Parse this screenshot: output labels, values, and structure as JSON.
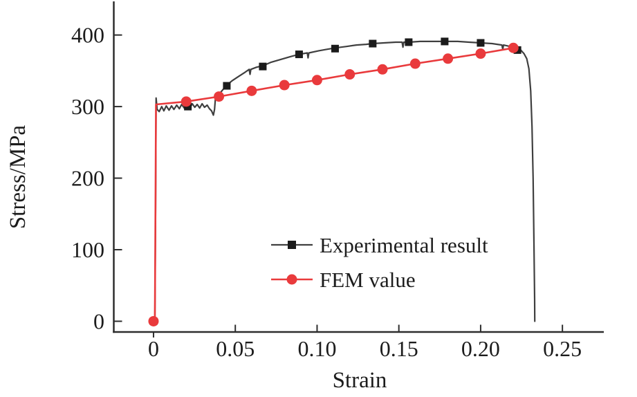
{
  "chart_data": {
    "type": "line",
    "title": "",
    "xlabel": "Strain",
    "ylabel": "Stress/MPa",
    "xlim": [
      -0.0243,
      0.2753
    ],
    "ylim": [
      -15,
      447
    ],
    "grid": false,
    "legend_position": "inside-center-right",
    "x_ticks": {
      "values": [
        0,
        0.05,
        0.1,
        0.15,
        0.2,
        0.25
      ],
      "labels": [
        "0",
        "0.05",
        "0.10",
        "0.15",
        "0.20",
        "0.25"
      ]
    },
    "y_ticks": {
      "values": [
        0,
        100,
        200,
        300,
        400
      ],
      "labels": [
        "0",
        "100",
        "200",
        "300",
        "400"
      ]
    },
    "axis_color": "#2d2d2d",
    "series": [
      {
        "name": "Experimental result",
        "color": "#3f3f3f",
        "marker": "square",
        "marker_color": "#1b1b1b",
        "marker_size": 11,
        "line_width": 2.2,
        "line": [
          [
            0.0,
            0
          ],
          [
            0.0008,
            0
          ],
          [
            0.0013,
            160
          ],
          [
            0.0016,
            312
          ],
          [
            0.0022,
            296
          ],
          [
            0.0035,
            293
          ],
          [
            0.005,
            300
          ],
          [
            0.0063,
            294
          ],
          [
            0.0078,
            301
          ],
          [
            0.0095,
            295
          ],
          [
            0.011,
            301
          ],
          [
            0.0125,
            296
          ],
          [
            0.0142,
            302
          ],
          [
            0.0158,
            297
          ],
          [
            0.0172,
            303
          ],
          [
            0.0188,
            298
          ],
          [
            0.0205,
            303
          ],
          [
            0.0222,
            298
          ],
          [
            0.0237,
            304
          ],
          [
            0.0252,
            299
          ],
          [
            0.0267,
            303
          ],
          [
            0.0282,
            298
          ],
          [
            0.0297,
            304
          ],
          [
            0.0312,
            299
          ],
          [
            0.0328,
            302
          ],
          [
            0.0342,
            297
          ],
          [
            0.0355,
            294
          ],
          [
            0.0366,
            288
          ],
          [
            0.0373,
            296
          ],
          [
            0.0379,
            313
          ],
          [
            0.04,
            317
          ],
          [
            0.0425,
            324
          ],
          [
            0.0448,
            330
          ],
          [
            0.048,
            336
          ],
          [
            0.052,
            342
          ],
          [
            0.056,
            348
          ],
          [
            0.0585,
            352
          ],
          [
            0.059,
            345
          ],
          [
            0.0595,
            352
          ],
          [
            0.063,
            355
          ],
          [
            0.0668,
            357
          ],
          [
            0.072,
            362
          ],
          [
            0.078,
            366
          ],
          [
            0.084,
            370
          ],
          [
            0.089,
            373
          ],
          [
            0.094,
            375
          ],
          [
            0.0945,
            368
          ],
          [
            0.095,
            375
          ],
          [
            0.101,
            378
          ],
          [
            0.106,
            380
          ],
          [
            0.111,
            382
          ],
          [
            0.118,
            384
          ],
          [
            0.124,
            386
          ],
          [
            0.13,
            387
          ],
          [
            0.134,
            388
          ],
          [
            0.141,
            389
          ],
          [
            0.148,
            390
          ],
          [
            0.152,
            390
          ],
          [
            0.1525,
            383
          ],
          [
            0.153,
            390
          ],
          [
            0.156,
            390
          ],
          [
            0.163,
            391
          ],
          [
            0.17,
            391
          ],
          [
            0.178,
            391
          ],
          [
            0.186,
            391
          ],
          [
            0.193,
            390
          ],
          [
            0.2,
            389
          ],
          [
            0.207,
            388
          ],
          [
            0.213,
            386
          ],
          [
            0.2135,
            380
          ],
          [
            0.214,
            386
          ],
          [
            0.218,
            384
          ],
          [
            0.222,
            382
          ],
          [
            0.2245,
            379
          ],
          [
            0.2265,
            374
          ],
          [
            0.2282,
            367
          ],
          [
            0.2295,
            353
          ],
          [
            0.2306,
            322
          ],
          [
            0.2314,
            272
          ],
          [
            0.2321,
            200
          ],
          [
            0.2326,
            110
          ],
          [
            0.233,
            30
          ],
          [
            0.2331,
            0
          ]
        ],
        "marker_points": [
          [
            0,
            0
          ],
          [
            0.021,
            300
          ],
          [
            0.0448,
            329
          ],
          [
            0.0668,
            356
          ],
          [
            0.089,
            373
          ],
          [
            0.111,
            381
          ],
          [
            0.134,
            388
          ],
          [
            0.156,
            390
          ],
          [
            0.178,
            391
          ],
          [
            0.2,
            389
          ],
          [
            0.2225,
            379
          ]
        ]
      },
      {
        "name": "FEM value",
        "color": "#e93a3c",
        "marker": "circle",
        "marker_color": "#e93a3c",
        "marker_size": 15,
        "line_width": 2.6,
        "line": [
          [
            0.0,
            0
          ],
          [
            0.0008,
            0
          ],
          [
            0.0012,
            160
          ],
          [
            0.0015,
            303
          ],
          [
            0.02,
            307
          ],
          [
            0.04,
            314
          ],
          [
            0.06,
            322
          ],
          [
            0.08,
            330
          ],
          [
            0.1,
            337
          ],
          [
            0.12,
            345
          ],
          [
            0.14,
            352
          ],
          [
            0.16,
            360
          ],
          [
            0.18,
            367
          ],
          [
            0.2,
            374
          ],
          [
            0.22,
            382
          ]
        ],
        "marker_points": [
          [
            0,
            0
          ],
          [
            0.02,
            307
          ],
          [
            0.04,
            314
          ],
          [
            0.06,
            322
          ],
          [
            0.08,
            330
          ],
          [
            0.1,
            337
          ],
          [
            0.12,
            345
          ],
          [
            0.14,
            352
          ],
          [
            0.16,
            360
          ],
          [
            0.18,
            367
          ],
          [
            0.2,
            374
          ],
          [
            0.22,
            382
          ]
        ]
      }
    ]
  }
}
